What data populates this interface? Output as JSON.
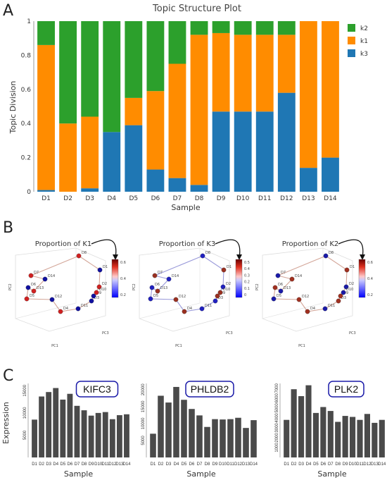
{
  "panel_labels": [
    "A",
    "B",
    "C"
  ],
  "colors": {
    "k2": "#2ca02c",
    "k1": "#ff8c00",
    "k3": "#1f77b4"
  },
  "chart_data": [
    {
      "type": "bar",
      "stacked": true,
      "title": "Topic Structure Plot",
      "xlabel": "Sample",
      "ylabel": "Topic Division",
      "ylim": [
        0,
        1
      ],
      "yticks": [
        "0",
        "0.2",
        "0.4",
        "0.6",
        "0.8",
        "1"
      ],
      "legend_position": "top-right",
      "categories": [
        "D1",
        "D2",
        "D3",
        "D4",
        "D5",
        "D6",
        "D7",
        "D8",
        "D9",
        "D10",
        "D11",
        "D12",
        "D13",
        "D14"
      ],
      "series": [
        {
          "name": "k3",
          "values": [
            0.01,
            0.0,
            0.02,
            0.35,
            0.39,
            0.13,
            0.08,
            0.04,
            0.47,
            0.47,
            0.47,
            0.58,
            0.14,
            0.2
          ]
        },
        {
          "name": "k1",
          "values": [
            0.85,
            0.4,
            0.42,
            0.0,
            0.16,
            0.46,
            0.67,
            0.88,
            0.46,
            0.45,
            0.45,
            0.34,
            0.86,
            0.8
          ]
        },
        {
          "name": "k2",
          "values": [
            0.14,
            0.6,
            0.56,
            0.65,
            0.45,
            0.41,
            0.25,
            0.08,
            0.07,
            0.08,
            0.08,
            0.08,
            0.0,
            0.0
          ]
        }
      ]
    },
    {
      "type": "scatter",
      "title": "Proportion of K1",
      "axis_labels": [
        "PC1",
        "PC2",
        "PC3"
      ],
      "colorbar_ticks": [
        "0.2",
        "0.4",
        "0.6"
      ],
      "points": [
        "D1",
        "D2",
        "D3",
        "D4",
        "D5",
        "D6",
        "D7",
        "D8",
        "D9",
        "D10",
        "D11",
        "D12",
        "D13",
        "D14"
      ]
    },
    {
      "type": "scatter",
      "title": "Proportion of K3",
      "axis_labels": [
        "PC1",
        "PC2",
        "PC3"
      ],
      "colorbar_ticks": [
        "0",
        "0.1",
        "0.2",
        "0.3",
        "0.4",
        "0.5"
      ],
      "points": [
        "D1",
        "D2",
        "D3",
        "D4",
        "D5",
        "D6",
        "D7",
        "D8",
        "D9",
        "D10",
        "D11",
        "D12",
        "D13",
        "D14"
      ]
    },
    {
      "type": "scatter",
      "title": "Proportion of K2",
      "axis_labels": [
        "PC1",
        "PC2",
        "PC3"
      ],
      "colorbar_ticks": [
        "0.2",
        "0.4",
        "0.6"
      ],
      "points": [
        "D1",
        "D2",
        "D3",
        "D4",
        "D5",
        "D6",
        "D7",
        "D8",
        "D9",
        "D10",
        "D11",
        "D12",
        "D13",
        "D14"
      ]
    },
    {
      "type": "bar",
      "title": "KIFC3",
      "xlabel": "Sample",
      "ylabel": "Expression",
      "ylim": [
        0,
        16000
      ],
      "yticks": [
        5000,
        10000,
        15000
      ],
      "categories": [
        "D1",
        "D2",
        "D3",
        "D4",
        "D5",
        "D6",
        "D7",
        "D8",
        "D9",
        "D10",
        "D11",
        "D12",
        "D13",
        "D14"
      ],
      "values": [
        8500,
        13700,
        14700,
        15600,
        13000,
        14300,
        11600,
        10600,
        9400,
        10000,
        10200,
        8600,
        9500,
        9700
      ]
    },
    {
      "type": "bar",
      "title": "PHLDB2",
      "xlabel": "Sample",
      "ylim": [
        0,
        21000
      ],
      "yticks": [
        5000,
        10000,
        15000,
        20000
      ],
      "categories": [
        "D1",
        "D2",
        "D3",
        "D4",
        "D5",
        "D6",
        "D7",
        "D8",
        "D9",
        "D10",
        "D11",
        "D12",
        "D13",
        "D14"
      ],
      "values": [
        7000,
        18200,
        16200,
        20800,
        17000,
        14300,
        12400,
        9000,
        11300,
        11200,
        11300,
        11700,
        8700,
        11000
      ]
    },
    {
      "type": "bar",
      "title": "PLK2",
      "xlabel": "Sample",
      "ylim": [
        0,
        7200
      ],
      "yticks": [
        1000,
        2000,
        3000,
        4000,
        5000,
        6000,
        7000
      ],
      "categories": [
        "D1",
        "D2",
        "D3",
        "D4",
        "D5",
        "D6",
        "D7",
        "D8",
        "D9",
        "D10",
        "D11",
        "D12",
        "D13",
        "D14"
      ],
      "values": [
        3800,
        6900,
        6200,
        7300,
        4500,
        5100,
        4700,
        3600,
        4200,
        4100,
        3800,
        4400,
        3500,
        3800
      ]
    }
  ]
}
